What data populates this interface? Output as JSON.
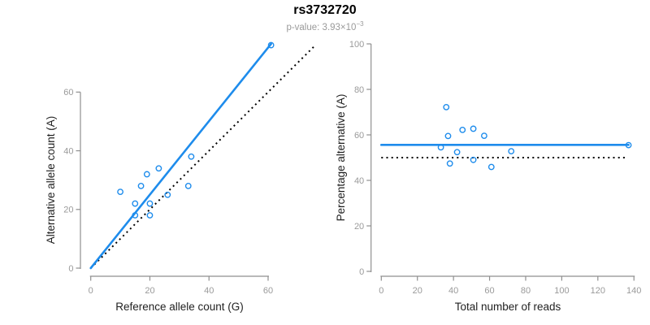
{
  "header": {
    "title": "rs3732720",
    "pvalue_text": "p-value: 3.93×10",
    "pvalue_exponent": "−3"
  },
  "colors": {
    "blue": "#1e8cec",
    "black": "#000000",
    "axis": "#8f8f8f",
    "tick_label": "#9a9a9a",
    "axis_title": "#1f1f1f",
    "subtitle": "#9a9a9a"
  },
  "chart_data": [
    {
      "type": "scatter",
      "panel": "allele-counts",
      "xlabel": "Reference allele count (G)",
      "ylabel": "Alternative allele count (A)",
      "xlim": [
        0,
        60
      ],
      "ylim": [
        0,
        60
      ],
      "xticks": [
        0,
        20,
        40,
        60
      ],
      "yticks": [
        0,
        20,
        40,
        60
      ],
      "grid": false,
      "legend": "none",
      "points": [
        [
          10,
          26
        ],
        [
          15,
          22
        ],
        [
          15,
          18
        ],
        [
          17,
          28
        ],
        [
          19,
          32
        ],
        [
          20,
          22
        ],
        [
          20,
          18
        ],
        [
          23,
          34
        ],
        [
          26,
          25
        ],
        [
          33,
          28
        ],
        [
          34,
          38
        ],
        [
          61,
          76
        ]
      ],
      "lines": [
        {
          "name": "identity-line",
          "style": "dotted",
          "color_key": "black",
          "x1": 0,
          "y1": 0,
          "x2": 76,
          "y2": 76
        },
        {
          "name": "fit-line",
          "style": "solid",
          "color_key": "blue",
          "x1": 0,
          "y1": 0,
          "x2": 61,
          "y2": 76.4
        }
      ]
    },
    {
      "type": "scatter",
      "panel": "percentage-vs-coverage",
      "xlabel": "Total number of reads",
      "ylabel": "Percentage alternative (A)",
      "xlim": [
        0,
        140
      ],
      "ylim": [
        0,
        100
      ],
      "xticks": [
        0,
        20,
        40,
        60,
        80,
        100,
        120,
        140
      ],
      "yticks": [
        0,
        20,
        40,
        60,
        80,
        100
      ],
      "grid": false,
      "legend": "none",
      "points": [
        [
          36,
          72.2
        ],
        [
          37,
          59.5
        ],
        [
          33,
          54.5
        ],
        [
          45,
          62.2
        ],
        [
          51,
          62.7
        ],
        [
          42,
          52.4
        ],
        [
          38,
          47.4
        ],
        [
          57,
          59.6
        ],
        [
          51,
          49
        ],
        [
          61,
          45.9
        ],
        [
          72,
          52.8
        ],
        [
          137,
          55.5
        ]
      ],
      "lines": [
        {
          "name": "null-50pct-line",
          "style": "dotted",
          "color_key": "black",
          "x1": 0,
          "y1": 50,
          "x2": 135.5,
          "y2": 50
        },
        {
          "name": "mean-pct-line",
          "style": "solid",
          "color_key": "blue",
          "x1": 0,
          "y1": 55.6,
          "x2": 137,
          "y2": 55.6
        }
      ]
    }
  ]
}
